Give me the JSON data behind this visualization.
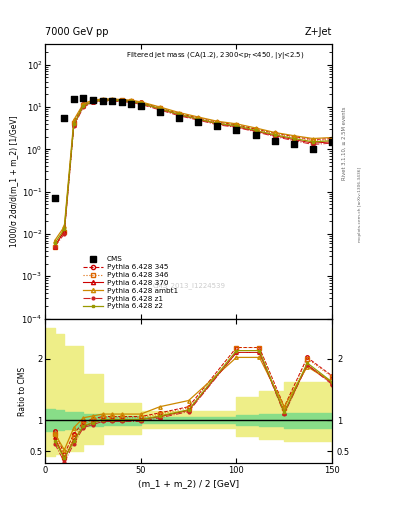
{
  "title_left": "7000 GeV pp",
  "title_right": "Z+Jet",
  "annotation": "Filtered jet mass (CA(1.2), 2300<p_{T}<450, |y|<2.5)",
  "watermark": "CMS_2013_I1224539",
  "right_label_top": "Rivet 3.1.10, ≥ 2.5M events",
  "right_label_bottom": "mcplots.cern.ch [arXiv:1306.3436]",
  "ylabel_main": "1000/σ 2dσ/d(m_1 + m_2) [1/GeV]",
  "ylabel_ratio": "Ratio to CMS",
  "xlabel": "(m_1 + m_2) / 2 [GeV]",
  "xlim": [
    0,
    150
  ],
  "cms_x": [
    5,
    10,
    15,
    20,
    25,
    30,
    35,
    40,
    45,
    50,
    60,
    70,
    80,
    90,
    100,
    110,
    120,
    130,
    140,
    150
  ],
  "cms_y": [
    0.07,
    5.5,
    15.5,
    16.0,
    15.0,
    14.0,
    13.5,
    13.0,
    12.0,
    10.5,
    7.5,
    5.5,
    4.5,
    3.5,
    2.8,
    2.2,
    1.6,
    1.3,
    1.0,
    1.5
  ],
  "py345_x": [
    5,
    10,
    15,
    20,
    25,
    30,
    35,
    40,
    45,
    50,
    60,
    70,
    80,
    90,
    100,
    110,
    120,
    130,
    140,
    150
  ],
  "py345_y": [
    0.005,
    0.012,
    4.5,
    11.5,
    14.0,
    15.0,
    15.0,
    14.5,
    14.0,
    12.8,
    9.5,
    7.0,
    5.5,
    4.4,
    3.8,
    3.0,
    2.4,
    2.0,
    1.7,
    1.8
  ],
  "py346_x": [
    5,
    10,
    15,
    20,
    25,
    30,
    35,
    40,
    45,
    50,
    60,
    70,
    80,
    90,
    100,
    110,
    120,
    130,
    140,
    150
  ],
  "py346_y": [
    0.005,
    0.011,
    4.2,
    11.0,
    13.8,
    14.8,
    14.8,
    14.3,
    13.8,
    12.5,
    9.3,
    6.8,
    5.3,
    4.2,
    3.7,
    2.9,
    2.3,
    1.9,
    1.6,
    1.7
  ],
  "py370_x": [
    5,
    10,
    15,
    20,
    25,
    30,
    35,
    40,
    45,
    50,
    60,
    70,
    80,
    90,
    100,
    110,
    120,
    130,
    140,
    150
  ],
  "py370_y": [
    0.005,
    0.012,
    3.8,
    10.5,
    13.3,
    14.3,
    14.3,
    13.8,
    13.3,
    12.0,
    8.9,
    6.5,
    5.1,
    4.0,
    3.4,
    2.7,
    2.1,
    1.7,
    1.4,
    1.5
  ],
  "pyambt_x": [
    5,
    10,
    15,
    20,
    25,
    30,
    35,
    40,
    45,
    50,
    60,
    70,
    80,
    90,
    100,
    110,
    120,
    130,
    140,
    150
  ],
  "pyambt_y": [
    0.007,
    0.015,
    5.0,
    12.0,
    14.5,
    15.5,
    15.5,
    15.0,
    14.5,
    13.2,
    10.0,
    7.4,
    5.8,
    4.6,
    4.0,
    3.2,
    2.5,
    2.1,
    1.8,
    1.9
  ],
  "pyz1_x": [
    5,
    10,
    15,
    20,
    25,
    30,
    35,
    40,
    45,
    50,
    60,
    70,
    80,
    90,
    100,
    110,
    120,
    130,
    140,
    150
  ],
  "pyz1_y": [
    0.005,
    0.01,
    3.5,
    10.0,
    12.8,
    13.8,
    13.8,
    13.3,
    12.8,
    11.5,
    8.5,
    6.2,
    4.9,
    3.8,
    3.3,
    2.6,
    2.0,
    1.6,
    1.3,
    1.4
  ],
  "pyz2_x": [
    5,
    10,
    15,
    20,
    25,
    30,
    35,
    40,
    45,
    50,
    60,
    70,
    80,
    90,
    100,
    110,
    120,
    130,
    140,
    150
  ],
  "pyz2_y": [
    0.006,
    0.013,
    4.0,
    10.8,
    13.5,
    14.5,
    14.5,
    14.0,
    13.5,
    12.2,
    9.1,
    6.7,
    5.2,
    4.1,
    3.6,
    2.8,
    2.2,
    1.8,
    1.5,
    1.6
  ],
  "ratio_x": [
    5,
    10,
    15,
    20,
    25,
    30,
    35,
    40,
    50,
    60,
    75,
    100,
    112,
    125,
    137,
    150
  ],
  "ratio_345": [
    0.82,
    0.45,
    0.78,
    0.97,
    1.02,
    1.06,
    1.06,
    1.06,
    1.06,
    1.12,
    1.22,
    2.18,
    2.18,
    1.22,
    2.02,
    1.72
  ],
  "ratio_346": [
    0.78,
    0.4,
    0.72,
    0.94,
    1.0,
    1.04,
    1.04,
    1.04,
    1.04,
    1.1,
    1.2,
    2.18,
    2.18,
    1.2,
    2.0,
    1.7
  ],
  "ratio_370": [
    0.72,
    0.38,
    0.68,
    0.9,
    0.96,
    1.01,
    1.01,
    1.01,
    1.01,
    1.06,
    1.16,
    2.1,
    2.1,
    1.12,
    1.9,
    1.6
  ],
  "ratio_ambt": [
    0.78,
    0.52,
    0.88,
    1.04,
    1.07,
    1.1,
    1.1,
    1.1,
    1.1,
    1.22,
    1.32,
    2.02,
    2.02,
    1.22,
    1.87,
    1.62
  ],
  "ratio_z1": [
    0.62,
    0.32,
    0.62,
    0.88,
    0.93,
    0.98,
    0.98,
    0.98,
    0.98,
    1.04,
    1.14,
    2.1,
    2.1,
    1.1,
    1.9,
    1.58
  ],
  "ratio_z2": [
    0.67,
    0.38,
    0.66,
    0.91,
    0.96,
    1.01,
    1.01,
    1.01,
    1.01,
    1.07,
    1.17,
    2.13,
    2.13,
    1.13,
    1.93,
    1.62
  ],
  "band_x": [
    0,
    5,
    10,
    20,
    30,
    50,
    75,
    100,
    112,
    125,
    150
  ],
  "band_green_lo": [
    0.82,
    0.84,
    0.86,
    0.9,
    0.93,
    0.95,
    0.95,
    0.92,
    0.9,
    0.88,
    0.88
  ],
  "band_green_hi": [
    1.18,
    1.16,
    1.14,
    1.1,
    1.07,
    1.05,
    1.05,
    1.08,
    1.1,
    1.12,
    1.12
  ],
  "band_yellow_lo": [
    0.42,
    0.45,
    0.5,
    0.62,
    0.78,
    0.87,
    0.87,
    0.74,
    0.7,
    0.66,
    0.38
  ],
  "band_yellow_hi": [
    2.5,
    2.4,
    2.2,
    1.75,
    1.28,
    1.15,
    1.15,
    1.38,
    1.48,
    1.62,
    2.5
  ],
  "color_345": "#cc0000",
  "color_346": "#dd6600",
  "color_370": "#cc0000",
  "color_ambt": "#cc8800",
  "color_z1": "#cc2222",
  "color_z2": "#999900",
  "color_cms": "#000000",
  "green_band": "#88dd88",
  "yellow_band": "#eeee88"
}
